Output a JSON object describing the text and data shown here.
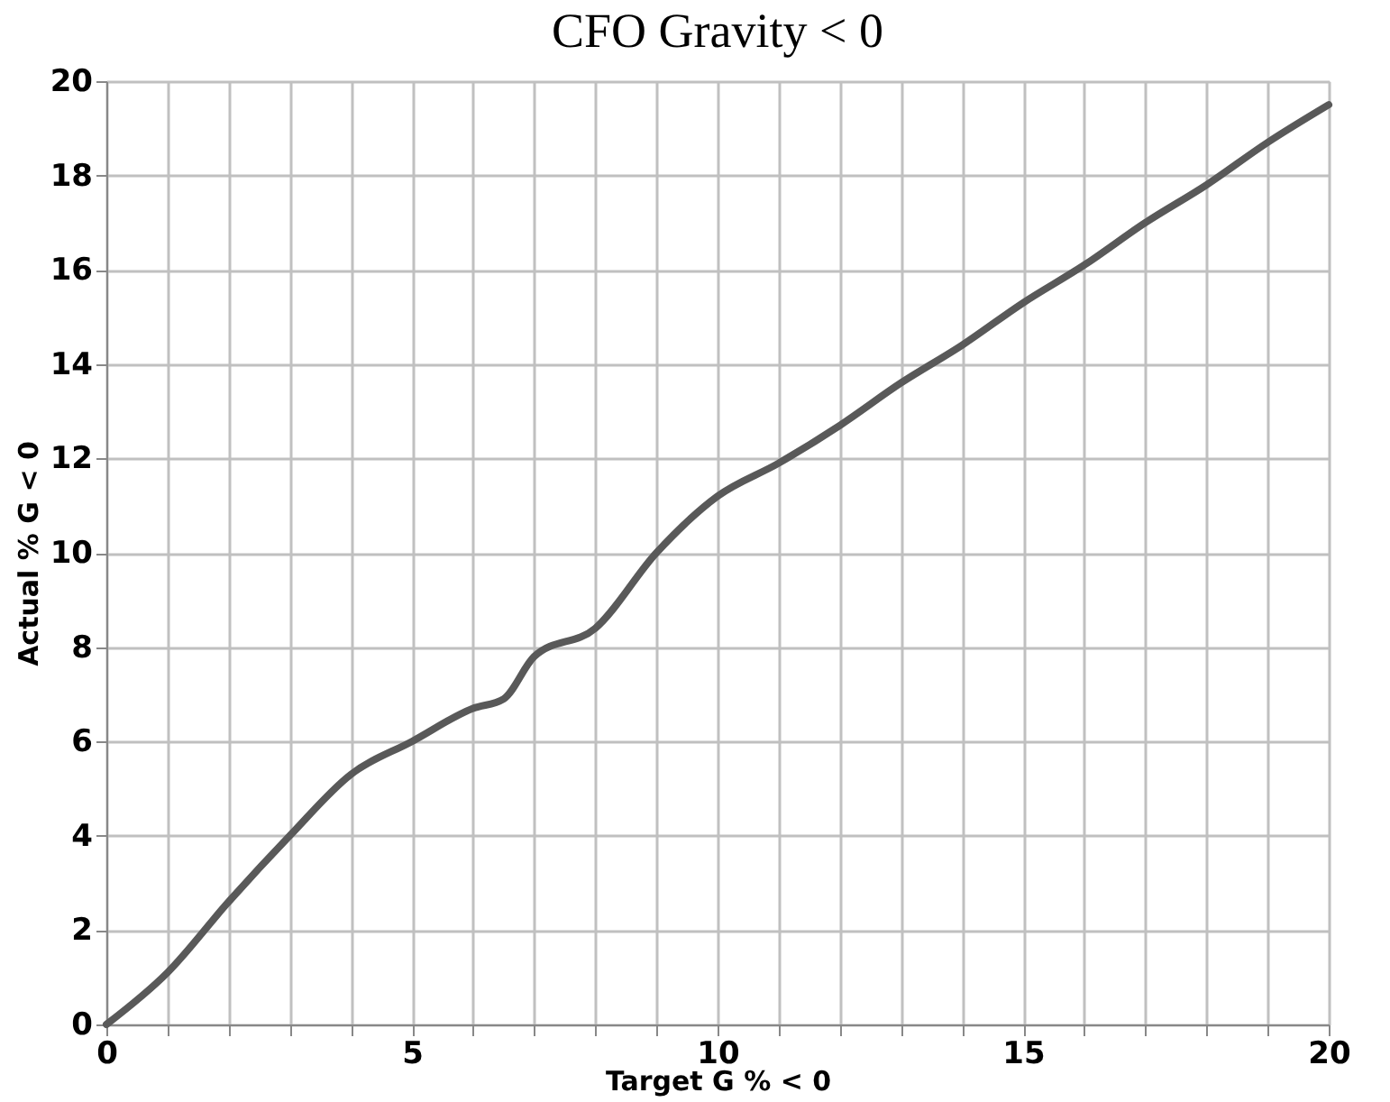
{
  "chart_data": {
    "type": "line",
    "title": "CFO Gravity < 0",
    "xlabel": "Target G % < 0",
    "ylabel": "Actual  % G < 0",
    "x": [
      0,
      1,
      2,
      3,
      4,
      5,
      6,
      6.5,
      7,
      8,
      9,
      10,
      11,
      12,
      13,
      14,
      15,
      16,
      17,
      18,
      19,
      20
    ],
    "series": [
      {
        "color": "#595959",
        "values": [
          0,
          1.1,
          2.6,
          4.0,
          5.3,
          6.0,
          6.7,
          6.9,
          7.8,
          8.4,
          10.0,
          11.2,
          11.9,
          12.7,
          13.6,
          14.4,
          15.3,
          16.1,
          17.0,
          17.8,
          18.7,
          19.5
        ]
      }
    ],
    "xlim": [
      0,
      20
    ],
    "ylim": [
      0,
      20
    ],
    "xticks": [
      0,
      {
        "value": 1,
        "label": null
      },
      {
        "value": 2,
        "label": null
      },
      {
        "value": 3,
        "label": null
      },
      {
        "value": 4,
        "label": null
      },
      5,
      {
        "value": 6,
        "label": null
      },
      {
        "value": 7,
        "label": null
      },
      {
        "value": 8,
        "label": null
      },
      {
        "value": 9,
        "label": null
      },
      10,
      {
        "value": 11,
        "label": null
      },
      {
        "value": 12,
        "label": null
      },
      {
        "value": 13,
        "label": null
      },
      {
        "value": 14,
        "label": null
      },
      15,
      {
        "value": 16,
        "label": null
      },
      {
        "value": 17,
        "label": null
      },
      {
        "value": 18,
        "label": null
      },
      {
        "value": 19,
        "label": null
      },
      20
    ],
    "yticks": [
      0,
      2,
      4,
      6,
      8,
      10,
      12,
      14,
      16,
      18,
      20
    ],
    "grid": true,
    "marker": "none",
    "line_style": "solid"
  }
}
